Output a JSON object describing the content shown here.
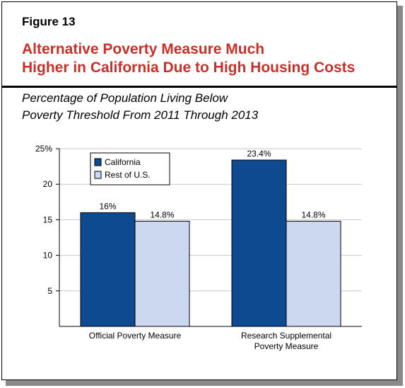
{
  "figure": {
    "label": "Figure 13",
    "title_line1": "Alternative Poverty Measure Much",
    "title_line2": "Higher in California Due to High Housing Costs",
    "subtitle_line1": "Percentage of Population Living Below",
    "subtitle_line2": "Poverty Threshold From 2011 Through 2013"
  },
  "colors": {
    "california": "#0d4a8f",
    "rest_of_us": "#ccd8f0",
    "title": "#c8312a",
    "gridline": "#c8c8c8"
  },
  "chart_data": {
    "type": "bar",
    "categories": [
      [
        "Official Poverty Measure"
      ],
      [
        "Research Supplemental",
        "Poverty Measure"
      ]
    ],
    "series": [
      {
        "name": "California",
        "values": [
          16,
          23.4
        ],
        "labels": [
          "16%",
          "23.4%"
        ]
      },
      {
        "name": "Rest of U.S.",
        "values": [
          14.8,
          14.8
        ],
        "labels": [
          "14.8%",
          "14.8%"
        ]
      }
    ],
    "y_ticks": [
      {
        "value": 5,
        "label": "5"
      },
      {
        "value": 10,
        "label": "10"
      },
      {
        "value": 15,
        "label": "15"
      },
      {
        "value": 20,
        "label": "20"
      },
      {
        "value": 25,
        "label": "25%"
      }
    ],
    "ylim": [
      0,
      25
    ],
    "grid": true,
    "legend_position": "top-left"
  }
}
